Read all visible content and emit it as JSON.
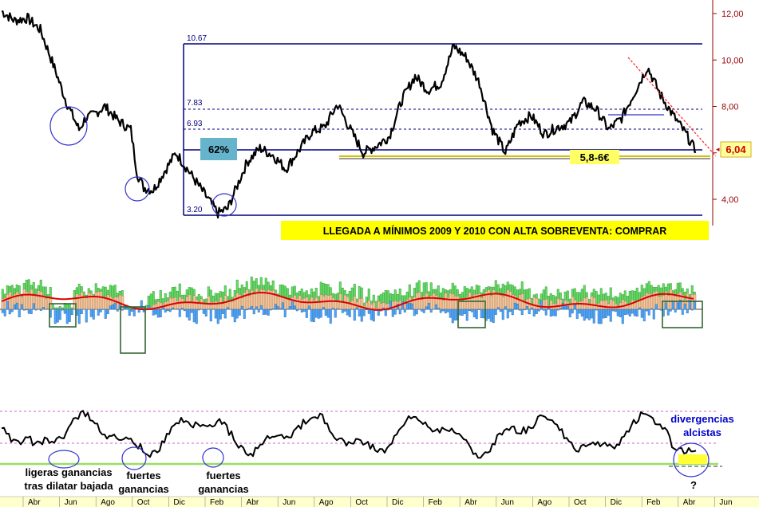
{
  "chart_data": {
    "type": "line",
    "price_panel": {
      "y_axis_ticks": [
        "12,00",
        "10,00",
        "8,00",
        "6,00",
        "4,00"
      ],
      "y_axis_values": [
        12,
        10,
        8,
        6,
        4
      ],
      "ylim": [
        2.9,
        12.4
      ],
      "fib_levels": [
        {
          "label": "10.67",
          "value": 10.67
        },
        {
          "label": "7.83",
          "value": 7.83
        },
        {
          "label": "6.93",
          "value": 6.93
        },
        {
          "label": "3.20",
          "value": 3.2
        }
      ],
      "retracement_label": "62%",
      "current_price": "6,04",
      "support_zone_label": "5,8-6€",
      "headline": "LLEGADA A MÍNIMOS 2009 Y 2010 CON ALTA SOBREVENTA: COMPRAR",
      "price_series": [
        {
          "x": 0,
          "y": 12.1
        },
        {
          "x": 4,
          "y": 11.7
        },
        {
          "x": 8,
          "y": 11.8
        },
        {
          "x": 12,
          "y": 11.3
        },
        {
          "x": 16,
          "y": 9.8
        },
        {
          "x": 20,
          "y": 8.2
        },
        {
          "x": 24,
          "y": 7.0
        },
        {
          "x": 26,
          "y": 7.5
        },
        {
          "x": 28,
          "y": 7.6
        },
        {
          "x": 32,
          "y": 8.0
        },
        {
          "x": 36,
          "y": 7.4
        },
        {
          "x": 40,
          "y": 7.0
        },
        {
          "x": 42,
          "y": 5.1
        },
        {
          "x": 44,
          "y": 4.5
        },
        {
          "x": 47,
          "y": 4.4
        },
        {
          "x": 50,
          "y": 5.1
        },
        {
          "x": 54,
          "y": 6.0
        },
        {
          "x": 57,
          "y": 5.4
        },
        {
          "x": 60,
          "y": 4.8
        },
        {
          "x": 64,
          "y": 4.0
        },
        {
          "x": 67,
          "y": 3.4
        },
        {
          "x": 70,
          "y": 3.6
        },
        {
          "x": 73,
          "y": 4.6
        },
        {
          "x": 76,
          "y": 5.6
        },
        {
          "x": 80,
          "y": 6.2
        },
        {
          "x": 84,
          "y": 5.9
        },
        {
          "x": 88,
          "y": 5.3
        },
        {
          "x": 92,
          "y": 6.1
        },
        {
          "x": 96,
          "y": 6.9
        },
        {
          "x": 100,
          "y": 7.1
        },
        {
          "x": 104,
          "y": 8.1
        },
        {
          "x": 108,
          "y": 7.0
        },
        {
          "x": 112,
          "y": 6.0
        },
        {
          "x": 116,
          "y": 6.3
        },
        {
          "x": 120,
          "y": 6.7
        },
        {
          "x": 124,
          "y": 8.3
        },
        {
          "x": 128,
          "y": 9.3
        },
        {
          "x": 132,
          "y": 8.7
        },
        {
          "x": 136,
          "y": 9.0
        },
        {
          "x": 140,
          "y": 10.6
        },
        {
          "x": 144,
          "y": 10.1
        },
        {
          "x": 148,
          "y": 9.0
        },
        {
          "x": 152,
          "y": 7.0
        },
        {
          "x": 156,
          "y": 6.0
        },
        {
          "x": 160,
          "y": 7.3
        },
        {
          "x": 164,
          "y": 7.6
        },
        {
          "x": 168,
          "y": 6.8
        },
        {
          "x": 172,
          "y": 7.1
        },
        {
          "x": 176,
          "y": 7.3
        },
        {
          "x": 180,
          "y": 8.2
        },
        {
          "x": 184,
          "y": 7.9
        },
        {
          "x": 188,
          "y": 7.0
        },
        {
          "x": 192,
          "y": 7.5
        },
        {
          "x": 196,
          "y": 8.6
        },
        {
          "x": 200,
          "y": 9.7
        },
        {
          "x": 204,
          "y": 8.5
        },
        {
          "x": 208,
          "y": 7.6
        },
        {
          "x": 212,
          "y": 6.8
        },
        {
          "x": 215,
          "y": 6.04
        }
      ]
    },
    "oscillator_panel_1": {
      "series": [
        "green histogram",
        "orange filled area",
        "red average line",
        "blue histogram"
      ]
    },
    "oscillator_panel_2": {
      "annotations": [
        "ligeras ganancias",
        "tras dilatar bajada",
        "fuertes",
        "ganancias",
        "fuertes",
        "ganancias",
        "divergencias",
        "alcistas",
        "?"
      ]
    },
    "x_axis_labels": [
      "Abr",
      "Jun",
      "Ago",
      "Oct",
      "Dic",
      "Feb",
      "Abr",
      "Jun",
      "Ago",
      "Oct",
      "Dic",
      "Feb",
      "Abr",
      "Jun",
      "Ago",
      "Oct",
      "Dic",
      "Feb",
      "Abr",
      "Jun"
    ],
    "colors": {
      "fib_line": "#000080",
      "support_line": "#d4c000",
      "support_box": "#ffff66",
      "price_label_box": "#ffff99",
      "price_label_text": "#cc0000",
      "headline_box": "#ffff00",
      "retracement_box": "#66b3cc",
      "circle": "#3333cc",
      "osc_green": "#66dd66",
      "osc_orange": "#f5c9a0",
      "osc_red": "#dd0000",
      "osc_blue": "#4da6ff",
      "box_green": "#336633",
      "rsi_guide": "#cc66cc",
      "rsi_baseline": "#99dd66",
      "axis_red": "#990000",
      "month_axis_bg": "#ffffcc"
    }
  }
}
